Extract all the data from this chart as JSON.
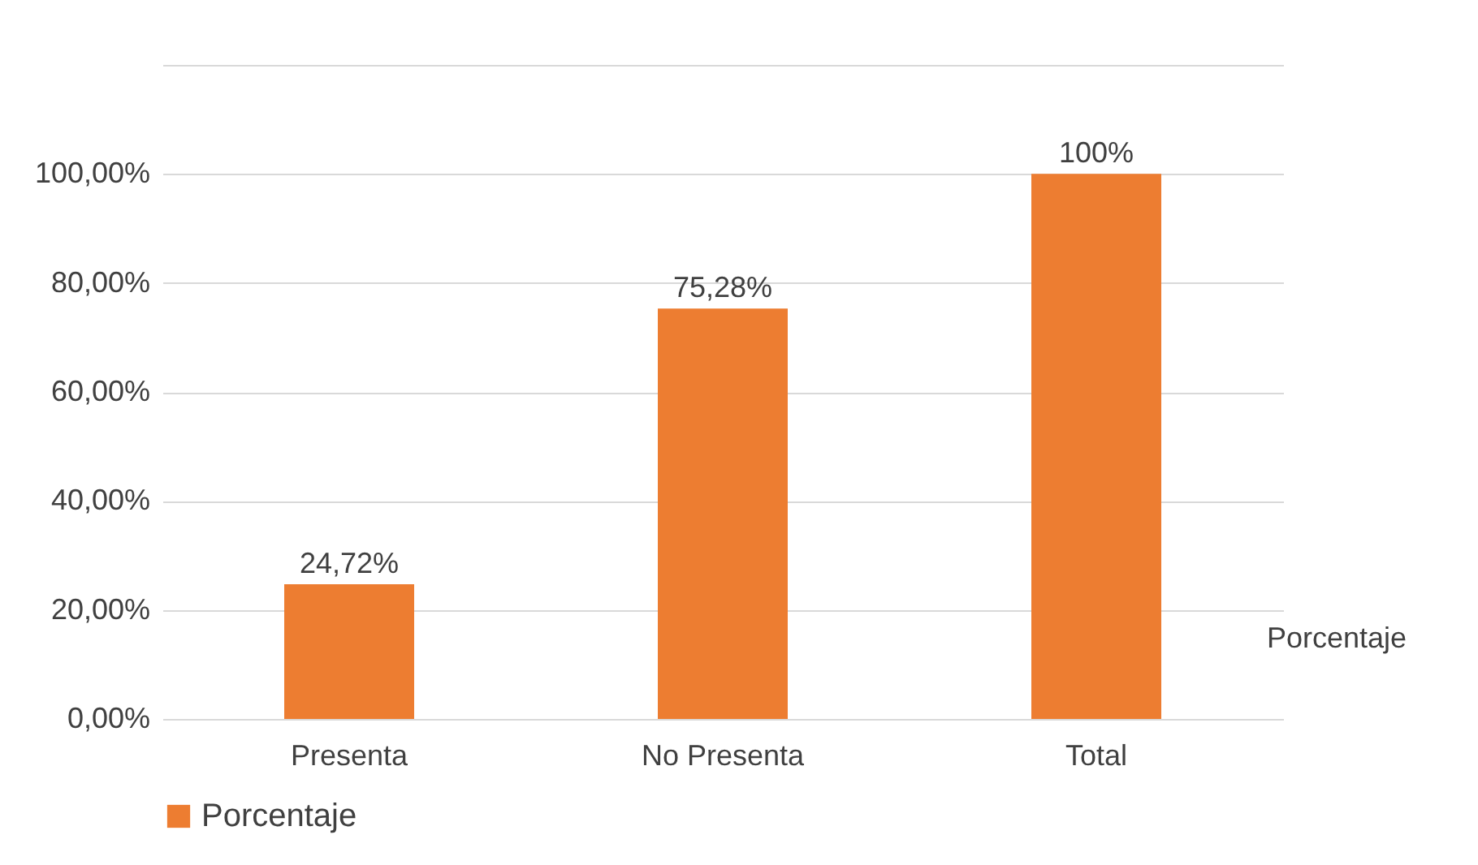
{
  "chart_data": {
    "type": "bar",
    "categories": [
      "Presenta",
      "No Presenta",
      "Total"
    ],
    "series": [
      {
        "name": "Porcentaje",
        "color": "#ed7d31",
        "values": [
          24.72,
          75.28,
          100
        ]
      }
    ],
    "value_labels": [
      "24,72%",
      "75,28%",
      "100%"
    ],
    "ylim": [
      0,
      120
    ],
    "yticks": [
      {
        "value": 0,
        "label": "0,00%"
      },
      {
        "value": 20,
        "label": "20,00%"
      },
      {
        "value": 40,
        "label": "40,00%"
      },
      {
        "value": 60,
        "label": "60,00%"
      },
      {
        "value": 80,
        "label": "80,00%"
      },
      {
        "value": 100,
        "label": "100,00%"
      },
      {
        "value": 120,
        "label": null
      }
    ],
    "grid": "y",
    "legend": "bottom"
  }
}
